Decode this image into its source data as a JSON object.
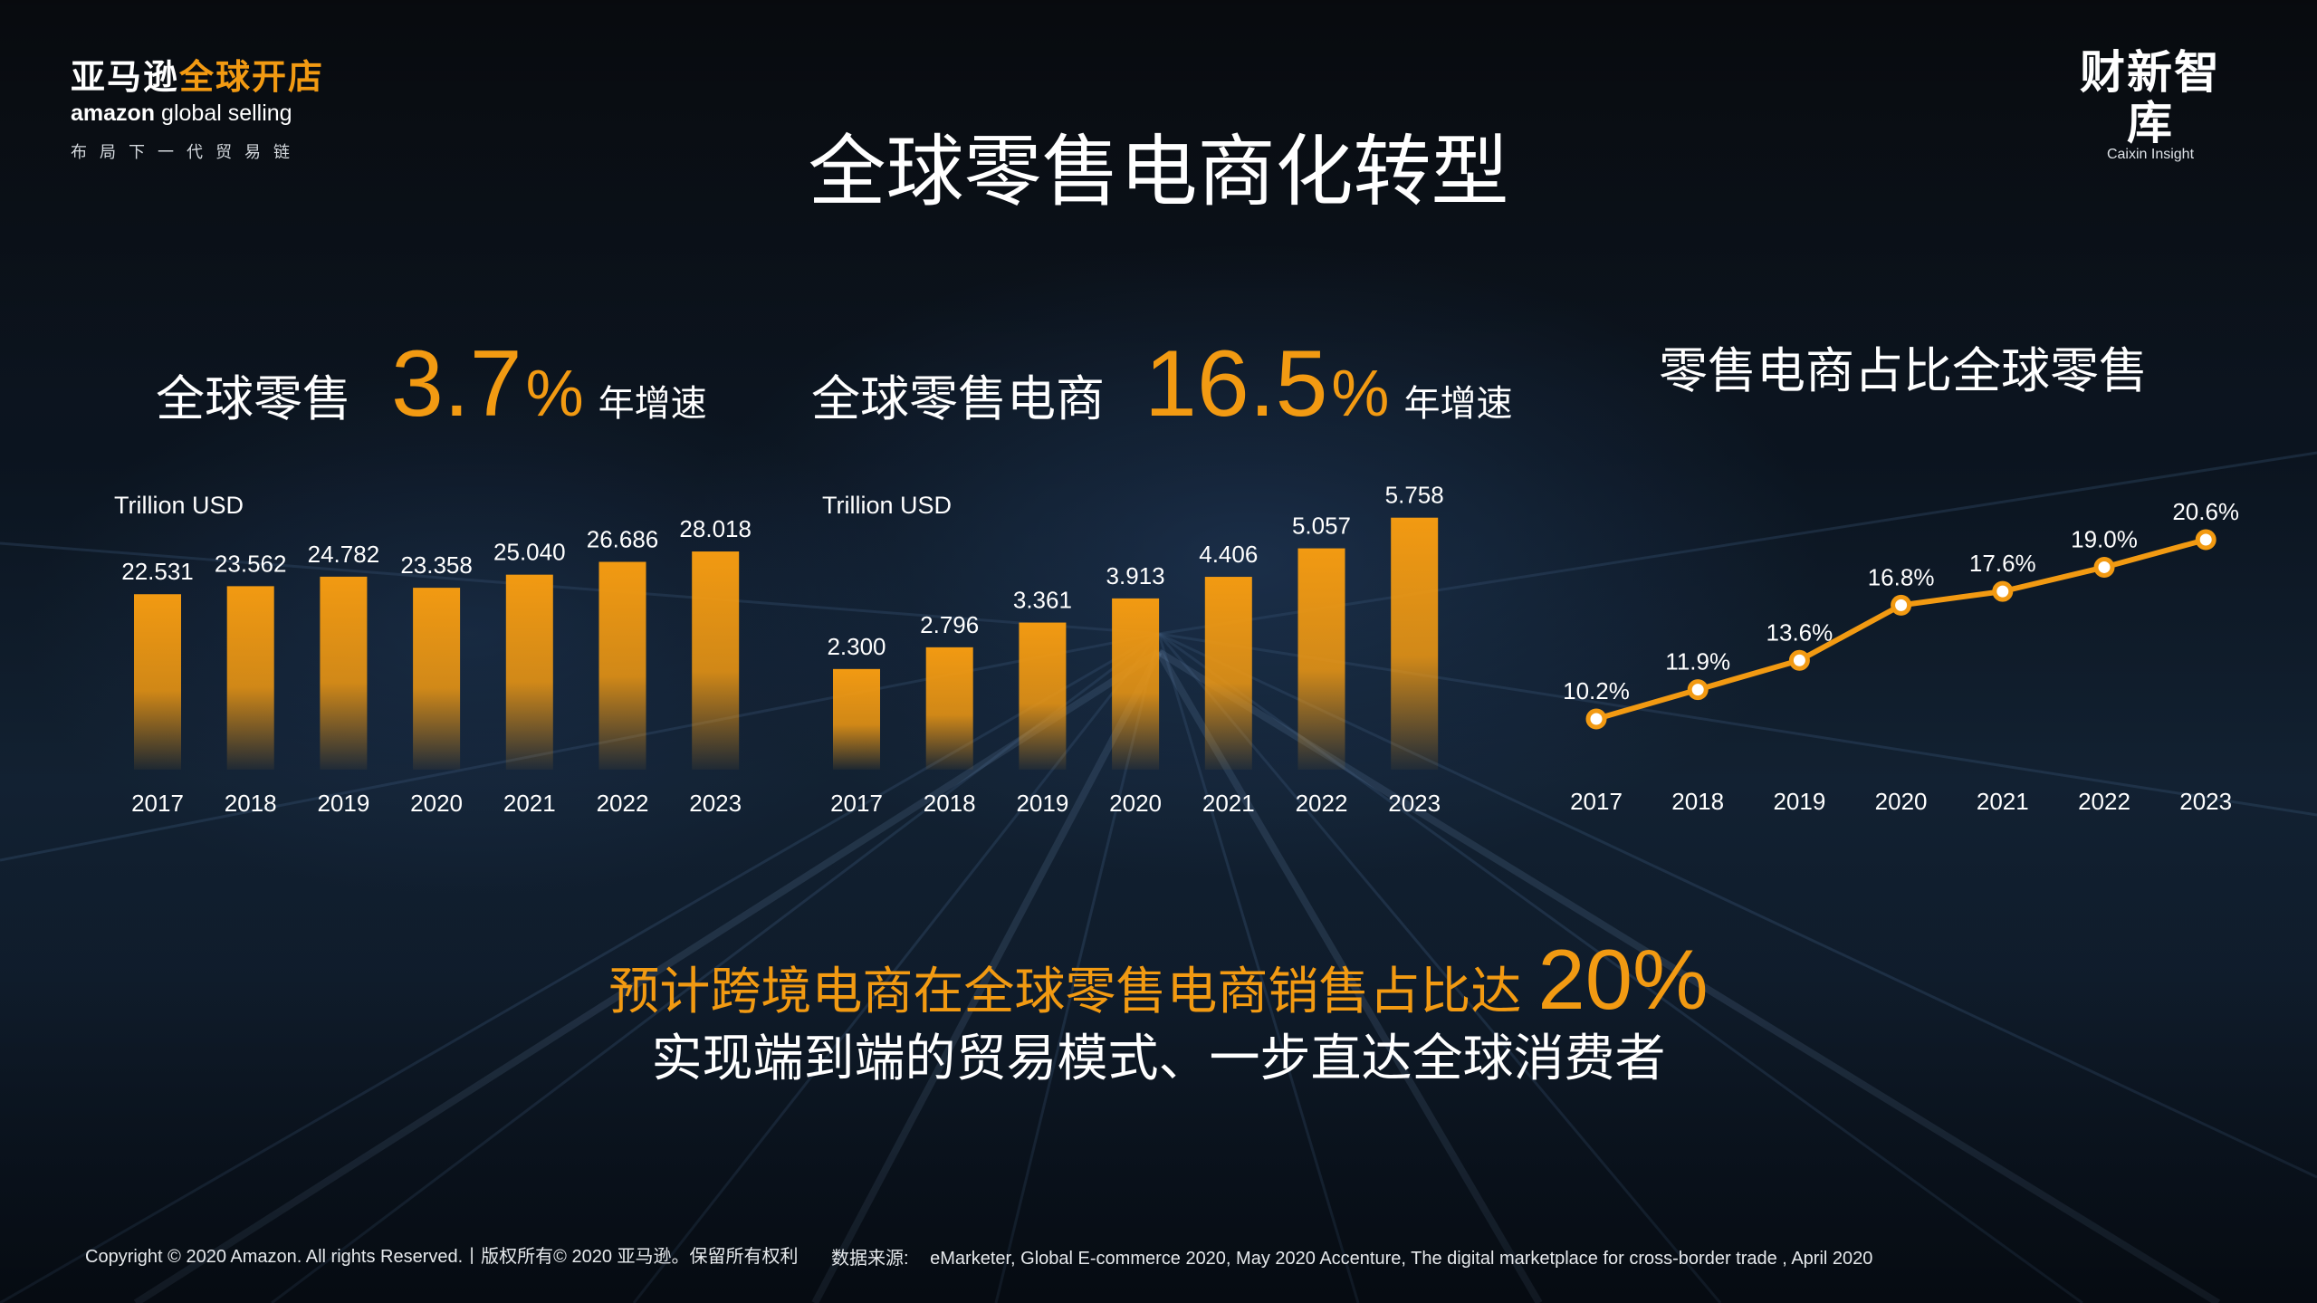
{
  "brand": {
    "cn_part1": "亚马逊",
    "cn_part2": "全球开店",
    "en_part1": "amazon",
    "en_part2": "global selling",
    "slogan": "布局下一代贸易链"
  },
  "partner": {
    "cn": "财新智库",
    "en": "Caixin Insight"
  },
  "title": "全球零售电商化转型",
  "colors": {
    "accent": "#f29a12",
    "text": "#ffffff",
    "background": "#0c1622"
  },
  "sections": [
    {
      "label": "全球零售",
      "number": "3.7",
      "pct": "%",
      "rate_text": "年增速",
      "unit": "Trillion USD"
    },
    {
      "label": "全球零售电商",
      "number": "16.5",
      "pct": "%",
      "rate_text": "年增速",
      "unit": "Trillion USD"
    },
    {
      "label": "零售电商占比全球零售"
    }
  ],
  "chart_data": [
    {
      "type": "bar",
      "categories": [
        "2017",
        "2018",
        "2019",
        "2020",
        "2021",
        "2022",
        "2023"
      ],
      "values": [
        22.531,
        23.562,
        24.782,
        23.358,
        25.04,
        26.686,
        28.018
      ],
      "labels": [
        "22.531",
        "23.562",
        "24.782",
        "23.358",
        "25.040",
        "26.686",
        "28.018"
      ],
      "ylabel": "Trillion USD",
      "ylim": [
        0,
        30
      ],
      "grid": false,
      "color": "#f29a12"
    },
    {
      "type": "bar",
      "categories": [
        "2017",
        "2018",
        "2019",
        "2020",
        "2021",
        "2022",
        "2023"
      ],
      "values": [
        2.3,
        2.796,
        3.361,
        3.913,
        4.406,
        5.057,
        5.758
      ],
      "labels": [
        "2.300",
        "2.796",
        "3.361",
        "3.913",
        "4.406",
        "5.057",
        "5.758"
      ],
      "ylabel": "Trillion USD",
      "ylim": [
        0,
        6
      ],
      "grid": false,
      "color": "#f29a12"
    },
    {
      "type": "line",
      "categories": [
        "2017",
        "2018",
        "2019",
        "2020",
        "2021",
        "2022",
        "2023"
      ],
      "values": [
        10.2,
        11.9,
        13.6,
        16.8,
        17.6,
        19.0,
        20.6
      ],
      "labels": [
        "10.2%",
        "11.9%",
        "13.6%",
        "16.8%",
        "17.6%",
        "19.0%",
        "20.6%"
      ],
      "ylim": [
        8,
        22
      ],
      "grid": false,
      "color": "#f29a12"
    }
  ],
  "bottom": {
    "line1": "预计跨境电商在全球零售电商销售占比达",
    "line1_big": "20%",
    "line2": "实现端到端的贸易模式、一步直达全球消费者"
  },
  "footer": {
    "copyright": "Copyright © 2020 Amazon. All rights Reserved.丨版权所有© 2020 亚马逊。保留所有权利",
    "source_label": "数据来源:",
    "source_text": "eMarketer, Global E-commerce 2020, May 2020   Accenture, The digital marketplace for cross-border trade , April 2020"
  }
}
